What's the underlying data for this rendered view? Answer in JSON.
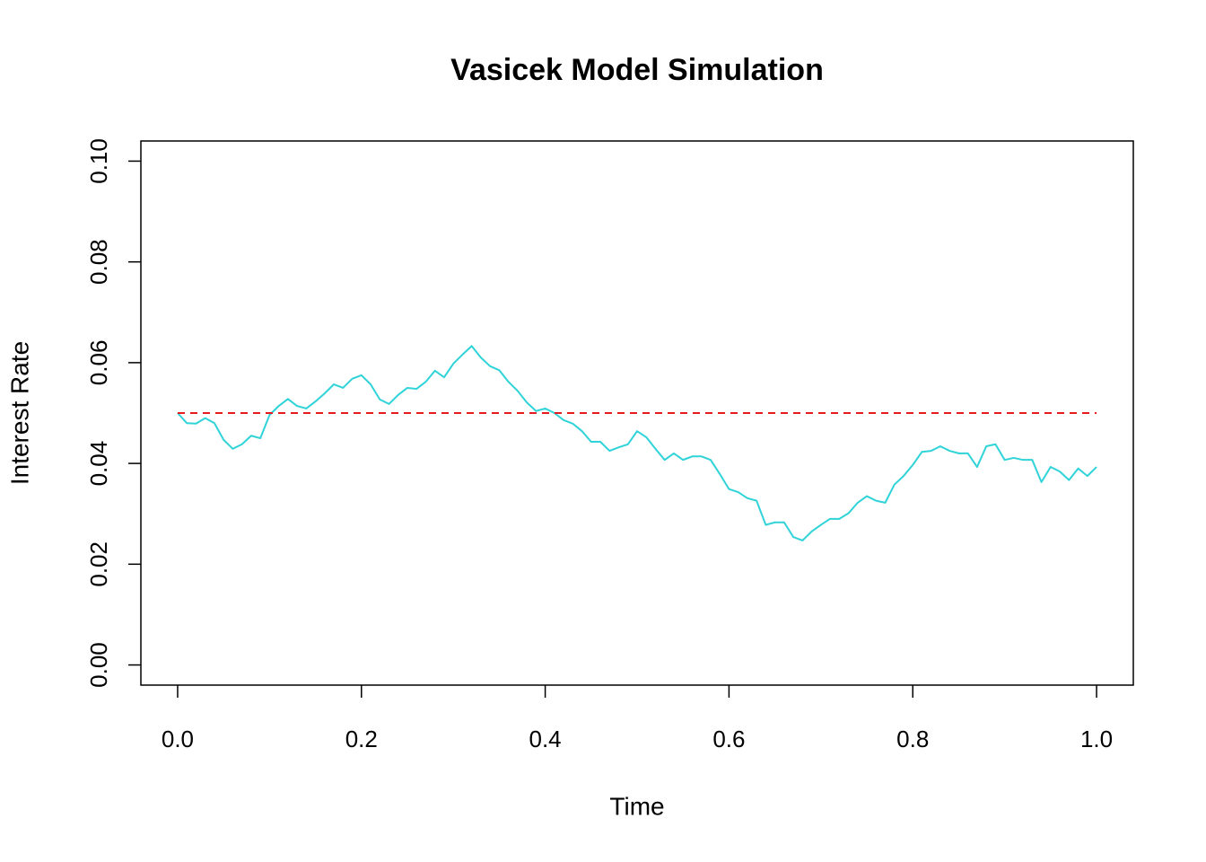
{
  "chart_data": {
    "type": "line",
    "title": "Vasicek Model Simulation",
    "x_label": "Time",
    "y_label": "Interest Rate",
    "xlim": [
      -0.04,
      1.04
    ],
    "ylim": [
      -0.004,
      0.104
    ],
    "xticks": [
      {
        "value": 0,
        "label": "0.0"
      },
      {
        "value": 0.2,
        "label": "0.2"
      },
      {
        "value": 0.4,
        "label": "0.4"
      },
      {
        "value": 0.6,
        "label": "0.6"
      },
      {
        "value": 0.8,
        "label": "0.8"
      },
      {
        "value": 1,
        "label": "1.0"
      }
    ],
    "yticks": [
      {
        "value": 0,
        "label": "0.00"
      },
      {
        "value": 0.02,
        "label": "0.02"
      },
      {
        "value": 0.04,
        "label": "0.04"
      },
      {
        "value": 0.06,
        "label": "0.06"
      },
      {
        "value": 0.08,
        "label": "0.08"
      },
      {
        "value": 0.1,
        "label": "0.10"
      }
    ],
    "grid": false,
    "series": [
      {
        "color": "#2fd3d8",
        "linestyle": "solid",
        "x": [
          0,
          0.01,
          0.02,
          0.03,
          0.04,
          0.05,
          0.06,
          0.07,
          0.08,
          0.09,
          0.1,
          0.11,
          0.12,
          0.13,
          0.14,
          0.15,
          0.16,
          0.17,
          0.18,
          0.19,
          0.2,
          0.21,
          0.22,
          0.23,
          0.24,
          0.25,
          0.26,
          0.27,
          0.28,
          0.29,
          0.3,
          0.31,
          0.32,
          0.33,
          0.34,
          0.35,
          0.36,
          0.37,
          0.38,
          0.39,
          0.4,
          0.41,
          0.42,
          0.43,
          0.44,
          0.45,
          0.46,
          0.47,
          0.48,
          0.49,
          0.5,
          0.51,
          0.52,
          0.53,
          0.54,
          0.55,
          0.56,
          0.57,
          0.58,
          0.59,
          0.6,
          0.61,
          0.62,
          0.63,
          0.64,
          0.65,
          0.66,
          0.67,
          0.68,
          0.69,
          0.7,
          0.71,
          0.72,
          0.73,
          0.74,
          0.75,
          0.76,
          0.77,
          0.78,
          0.79,
          0.8,
          0.81,
          0.82,
          0.83,
          0.84,
          0.85,
          0.86,
          0.87,
          0.88,
          0.89,
          0.9,
          0.91,
          0.92,
          0.93,
          0.94,
          0.95,
          0.96,
          0.97,
          0.98,
          0.99,
          1
        ],
        "values": [
          0.05,
          0.048,
          0.0479,
          0.049,
          0.048,
          0.0447,
          0.0429,
          0.0438,
          0.0455,
          0.045,
          0.0496,
          0.0514,
          0.0528,
          0.0514,
          0.0509,
          0.0523,
          0.0539,
          0.0557,
          0.055,
          0.0568,
          0.0575,
          0.0557,
          0.0527,
          0.0518,
          0.0536,
          0.055,
          0.0548,
          0.0562,
          0.0584,
          0.0571,
          0.0598,
          0.0616,
          0.0633,
          0.061,
          0.0593,
          0.0585,
          0.0562,
          0.0544,
          0.0521,
          0.0504,
          0.0509,
          0.05,
          0.0486,
          0.0479,
          0.0464,
          0.0443,
          0.0443,
          0.0425,
          0.0432,
          0.0438,
          0.0464,
          0.0452,
          0.0429,
          0.0407,
          0.042,
          0.0407,
          0.0414,
          0.0414,
          0.0407,
          0.0379,
          0.0349,
          0.0343,
          0.0331,
          0.0326,
          0.0278,
          0.0283,
          0.0283,
          0.0254,
          0.0247,
          0.0265,
          0.0278,
          0.029,
          0.029,
          0.0301,
          0.0322,
          0.0335,
          0.0326,
          0.0322,
          0.0358,
          0.0375,
          0.0397,
          0.0423,
          0.0425,
          0.0434,
          0.0425,
          0.042,
          0.042,
          0.0393,
          0.0434,
          0.0438,
          0.0407,
          0.0411,
          0.0407,
          0.0407,
          0.0363,
          0.0393,
          0.0384,
          0.0367,
          0.039,
          0.0375,
          0.0393
        ]
      },
      {
        "color": "#e41a1c",
        "linestyle": "dashed",
        "x": [
          0,
          1
        ],
        "values": [
          0.05,
          0.05
        ]
      }
    ]
  }
}
